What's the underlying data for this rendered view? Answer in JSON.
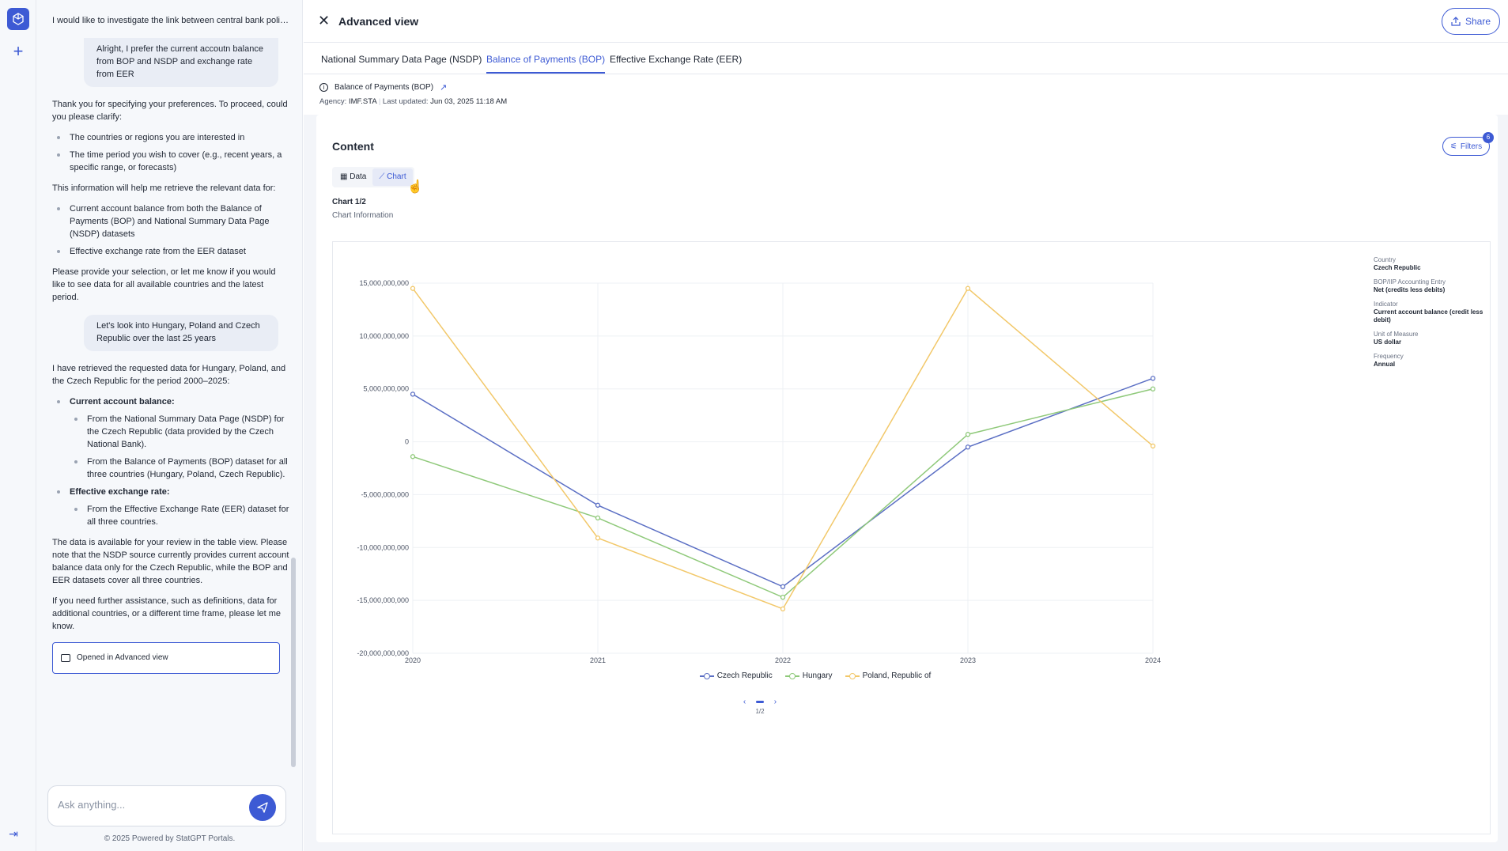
{
  "chat": {
    "title": "I would like to investigate the link between central bank policies ...",
    "msg_user_1": "Alright, I prefer the current accoutn balance from BOP and NSDP and exchange rate from EER",
    "msg_bot_1_intro": "Thank you for specifying your preferences. To proceed, could you please clarify:",
    "msg_bot_1_items": [
      "The countries or regions you are interested in",
      "The time period you wish to cover (e.g., recent years, a specific range, or forecasts)"
    ],
    "msg_bot_1_mid": "This information will help me retrieve the relevant data for:",
    "msg_bot_1_items2": [
      "Current account balance from both the Balance of Payments (BOP) and National Summary Data Page (NSDP) datasets",
      "Effective exchange rate from the EER dataset"
    ],
    "msg_bot_1_end": "Please provide your selection, or let me know if you would like to see data for all available countries and the latest period.",
    "msg_user_2": "Let's look into Hungary, Poland and Czech Republic over the last 25 years",
    "msg_bot_2_intro": "I have retrieved the requested data for Hungary, Poland, and the Czech Republic for the period 2000–2025:",
    "msg_bot_2_h1": "Current account balance:",
    "msg_bot_2_h1_items": [
      "From the National Summary Data Page (NSDP) for the Czech Republic (data provided by the Czech National Bank).",
      "From the Balance of Payments (BOP) dataset for all three countries (Hungary, Poland, Czech Republic)."
    ],
    "msg_bot_2_h2": "Effective exchange rate:",
    "msg_bot_2_h2_items": [
      "From the Effective Exchange Rate (EER) dataset for all three countries."
    ],
    "msg_bot_2_p1": "The data is available for your review in the table view. Please note that the NSDP source currently provides current account balance data only for the Czech Republic, while the BOP and EER datasets cover all three countries.",
    "msg_bot_2_p2": "If you need further assistance, such as definitions, data for additional countries, or a different time frame, please let me know.",
    "opened_label": "Opened in Advanced view",
    "input_placeholder": "Ask anything...",
    "footer": "© 2025 Powered by StatGPT Portals."
  },
  "main": {
    "heading": "Advanced view",
    "share_label": "Share",
    "tabs": [
      {
        "label": "National Summary Data Page (NSDP)"
      },
      {
        "label": "Balance of Payments (BOP)"
      },
      {
        "label": "Effective Exchange Rate (EER)"
      }
    ],
    "dataset_name": "Balance of Payments (BOP)",
    "agency_label": "Agency:",
    "agency_value": "IMF.STA",
    "updated_label": "Last updated:",
    "updated_value": "Jun 03, 2025 11:18 AM",
    "content_title": "Content",
    "filters_label": "Filters",
    "filters_count": "6",
    "toggle_data": "Data",
    "toggle_chart": "Chart",
    "chart_label": "Chart 1/2",
    "chart_info": "Chart Information",
    "meta": [
      {
        "k": "Country",
        "v": "Czech Republic"
      },
      {
        "k": "BOP/IIP Accounting Entry",
        "v": "Net (credits less debits)"
      },
      {
        "k": "Indicator",
        "v": "Current account balance (credit less debit)"
      },
      {
        "k": "Unit of Measure",
        "v": "US dollar"
      },
      {
        "k": "Frequency",
        "v": "Annual"
      }
    ],
    "pager": "1/2"
  },
  "colors": {
    "accent": "#3d5ad4",
    "czech": "#5b6fc4",
    "hungary": "#8fc97a",
    "poland": "#f2c86a"
  },
  "chart_data": {
    "type": "line",
    "x": [
      "2020",
      "2021",
      "2022",
      "2023",
      "2024"
    ],
    "ylim": [
      -20000000000,
      15000000000
    ],
    "yticks": [
      "15,000,000,000",
      "10,000,000,000",
      "5,000,000,000",
      "0",
      "-5,000,000,000",
      "-10,000,000,000",
      "-15,000,000,000",
      "-20,000,000,000"
    ],
    "ytick_values": [
      15000000000,
      10000000000,
      5000000000,
      0,
      -5000000000,
      -10000000000,
      -15000000000,
      -20000000000
    ],
    "series": [
      {
        "name": "Czech Republic",
        "color": "#5b6fc4",
        "values": [
          4500000000,
          -6000000000,
          -13700000000,
          -500000000,
          6000000000
        ]
      },
      {
        "name": "Hungary",
        "color": "#8fc97a",
        "values": [
          -1400000000,
          -7200000000,
          -14700000000,
          700000000,
          5000000000
        ]
      },
      {
        "name": "Poland, Republic of",
        "color": "#f2c86a",
        "values": [
          14500000000,
          -9100000000,
          -15800000000,
          14500000000,
          -400000000
        ]
      }
    ],
    "grid": true,
    "legend": "bottom"
  }
}
